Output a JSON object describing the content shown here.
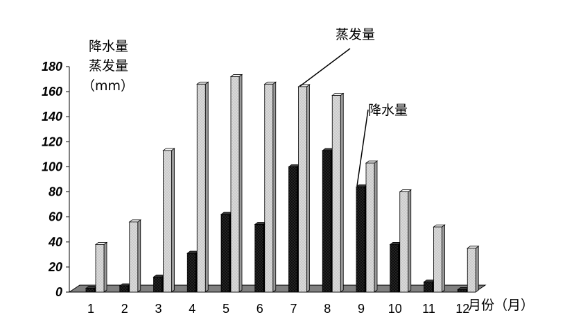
{
  "chart_data": {
    "type": "bar",
    "categories": [
      "1",
      "2",
      "3",
      "4",
      "5",
      "6",
      "7",
      "8",
      "9",
      "10",
      "11",
      "12"
    ],
    "series": [
      {
        "name": "降水量",
        "values": [
          3,
          5,
          12,
          31,
          62,
          54,
          100,
          113,
          84,
          38,
          8,
          2
        ],
        "color": "#111111"
      },
      {
        "name": "蒸发量",
        "values": [
          38,
          56,
          113,
          166,
          172,
          166,
          164,
          157,
          103,
          80,
          52,
          35
        ],
        "color": "#d6d6d6"
      }
    ],
    "ylabel_lines": [
      "降水量",
      "蒸发量",
      "（mm）"
    ],
    "xlabel": "月份（月）",
    "ylim": [
      0,
      180
    ],
    "yticks": [
      0,
      20,
      40,
      60,
      80,
      100,
      120,
      140,
      160,
      180
    ],
    "grid": false,
    "annotations": [
      "蒸发量",
      "降水量"
    ]
  }
}
